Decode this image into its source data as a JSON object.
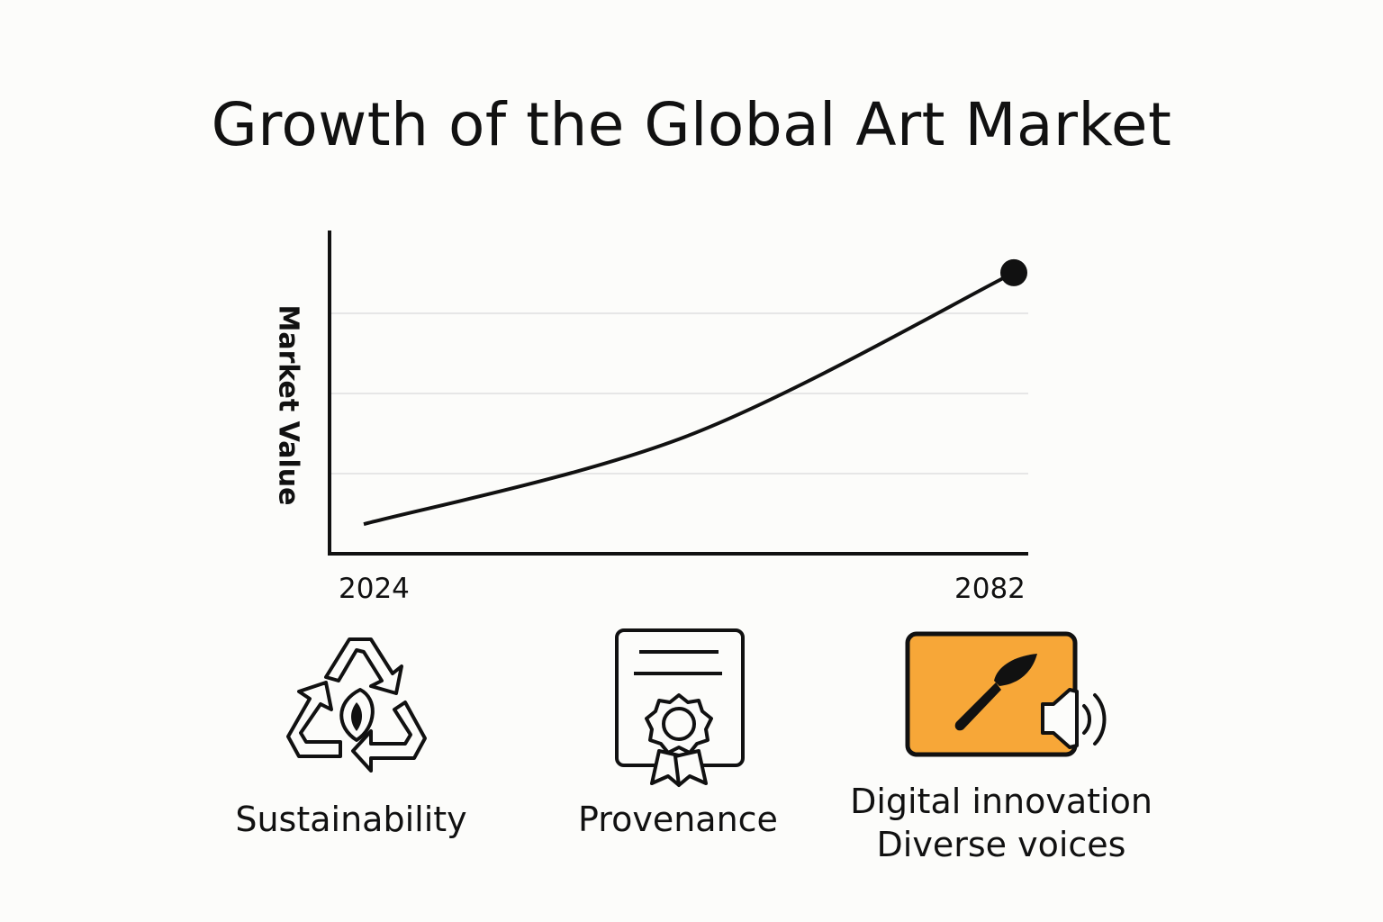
{
  "title": "Growth of the Global Art Market",
  "chart_data": {
    "type": "line",
    "title": "Growth of the Global Art Market",
    "xlabel": "",
    "ylabel": "Market Value",
    "x": [
      2024,
      2053,
      2082
    ],
    "series": [
      {
        "values": [
          10,
          40,
          95
        ],
        "end_marker": true
      }
    ],
    "xlim": [
      2024,
      2082
    ],
    "x_tick_labels": [
      "2024",
      "2082"
    ],
    "ylim": [
      0,
      105
    ],
    "grid": {
      "horizontal": true,
      "lines": 3
    },
    "colors": {
      "line": "#111111",
      "grid": "#e6e6e6"
    }
  },
  "ylabel_text": "Market Value",
  "icons": [
    {
      "name": "recycle-icon",
      "label": "Sustainability"
    },
    {
      "name": "certificate-icon",
      "label": "Provenance"
    },
    {
      "name": "brush-screen-icon",
      "label_line1": "Digital innovation",
      "label_line2": "Diverse voices",
      "accent": "#f7a738"
    }
  ]
}
